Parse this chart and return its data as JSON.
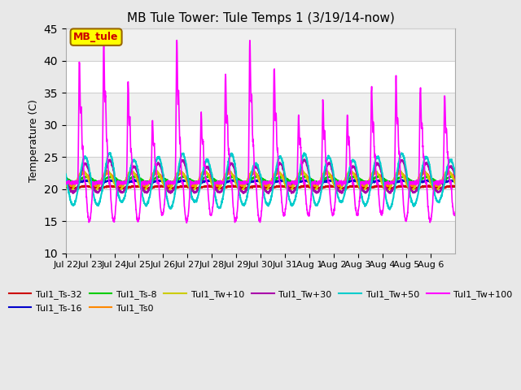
{
  "title": "MB Tule Tower: Tule Temps 1 (3/19/14-now)",
  "ylabel": "Temperature (C)",
  "annotation_text": "MB_tule",
  "annotation_bg": "#ffff00",
  "annotation_border": "#996600",
  "annotation_text_color": "#cc0000",
  "ylim": [
    10,
    45
  ],
  "yticks": [
    10,
    15,
    20,
    25,
    30,
    35,
    40,
    45
  ],
  "grid_color": "#d0d0d0",
  "bg_color": "#e8e8e8",
  "plot_bg": "#ffffff",
  "n_days": 16,
  "day_labels": [
    "Jul 22",
    "Jul 23",
    "Jul 24",
    "Jul 25",
    "Jul 26",
    "Jul 27",
    "Jul 28",
    "Jul 29",
    "Jul 30",
    "Jul 31",
    "Aug 1",
    "Aug 2",
    "Aug 3",
    "Aug 4",
    "Aug 5",
    "Aug 6"
  ],
  "series": [
    {
      "name": "Tul1_Ts-32",
      "color": "#cc0000",
      "linewidth": 1.5,
      "base": 20.3,
      "amp": 0.15,
      "phase": 0.0
    },
    {
      "name": "Tul1_Ts-16",
      "color": "#0000cc",
      "linewidth": 1.5,
      "base": 21.1,
      "amp": 0.2,
      "phase": 0.0
    },
    {
      "name": "Tul1_Ts-8",
      "color": "#00cc00",
      "linewidth": 1.5,
      "base": 21.5,
      "amp": 0.4,
      "phase": 0.0
    },
    {
      "name": "Tul1_Ts0",
      "color": "#ff8800",
      "linewidth": 1.5,
      "base": 21.5,
      "amp": 1.0,
      "phase": 0.1
    },
    {
      "name": "Tul1_Tw+10",
      "color": "#cccc00",
      "linewidth": 1.5,
      "base": 21.3,
      "amp": 1.5,
      "phase": 0.15
    },
    {
      "name": "Tul1_Tw+30",
      "color": "#aa00aa",
      "linewidth": 1.5,
      "base": 21.0,
      "amp": 3.0,
      "phase": 0.2
    },
    {
      "name": "Tul1_Tw+50",
      "color": "#00cccc",
      "linewidth": 1.5,
      "base": 21.0,
      "amp": 4.0,
      "phase": 0.25
    },
    {
      "name": "Tul1_Tw+100",
      "color": "#ff00ff",
      "linewidth": 1.2,
      "base": 21.0,
      "amp": 12.0,
      "phase": 0.3
    }
  ],
  "legend_order": [
    {
      "name": "Tul1_Ts-32",
      "color": "#cc0000"
    },
    {
      "name": "Tul1_Ts-16",
      "color": "#0000cc"
    },
    {
      "name": "Tul1_Ts-8",
      "color": "#00cc00"
    },
    {
      "name": "Tul1_Ts0",
      "color": "#ff8800"
    },
    {
      "name": "Tul1_Tw+10",
      "color": "#cccc00"
    },
    {
      "name": "Tul1_Tw+30",
      "color": "#aa00aa"
    },
    {
      "name": "Tul1_Tw+50",
      "color": "#00cccc"
    },
    {
      "name": "Tul1_Tw+100",
      "color": "#ff00ff"
    }
  ]
}
